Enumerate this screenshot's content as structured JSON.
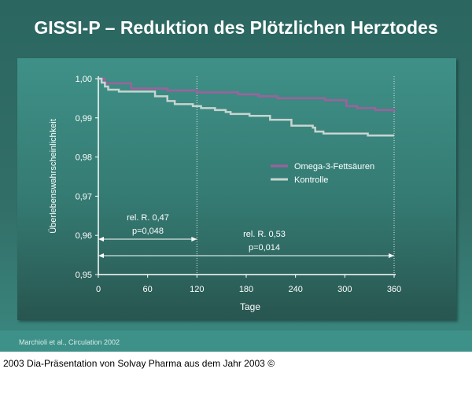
{
  "title": "GISSI-P – Reduktion des Plötzlichen Herztodes",
  "source": "Marchioli et al., Circulation 2002",
  "caption": "2003 Dia-Präsentation von Solvay Pharma aus dem Jahr 2003 ©",
  "chart_data": {
    "type": "line",
    "xlabel": "Tage",
    "ylabel": "Überlebenswahrscheinlichkeit",
    "xlim": [
      0,
      360
    ],
    "ylim": [
      0.95,
      1.0
    ],
    "xticks": [
      "0",
      "60",
      "120",
      "180",
      "240",
      "300",
      "360"
    ],
    "yticks": [
      "0,95",
      "0,96",
      "0,97",
      "0,98",
      "0,99",
      "1,00"
    ],
    "grid": false,
    "legend_placement": "right-middle",
    "series": [
      {
        "name": "Omega-3-Fettsäuren",
        "color": "#a0609e",
        "step": true,
        "x": [
          0,
          8,
          40,
          84,
          120,
          170,
          195,
          218,
          276,
          302,
          315,
          337,
          360
        ],
        "y": [
          1.0,
          0.9988,
          0.9975,
          0.997,
          0.9965,
          0.996,
          0.9955,
          0.995,
          0.9945,
          0.993,
          0.9925,
          0.992,
          0.9915
        ]
      },
      {
        "name": "Kontrolle",
        "color": "#c8d4d0",
        "step": true,
        "x": [
          0,
          4,
          8,
          12,
          25,
          69,
          84,
          93,
          115,
          125,
          142,
          155,
          161,
          184,
          209,
          235,
          261,
          264,
          274,
          328,
          360
        ],
        "y": [
          1.0,
          0.999,
          0.998,
          0.9972,
          0.9967,
          0.9955,
          0.9943,
          0.9935,
          0.993,
          0.9925,
          0.992,
          0.9915,
          0.991,
          0.9905,
          0.9895,
          0.988,
          0.9875,
          0.9865,
          0.986,
          0.9855,
          0.9855
        ]
      }
    ],
    "vlines": [
      120,
      360
    ],
    "annotations": [
      {
        "text1": "rel. R. 0,47",
        "text2": "p=0,048",
        "from": 0,
        "to": 120
      },
      {
        "text1": "rel. R. 0,53",
        "text2": "p=0,014",
        "from": 0,
        "to": 360
      }
    ]
  }
}
